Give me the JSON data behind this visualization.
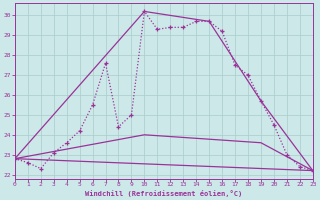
{
  "xlabel": "Windchill (Refroidissement éolien,°C)",
  "background_color": "#cde8e8",
  "grid_color": "#aacccc",
  "line_color": "#993399",
  "xlim": [
    0,
    23
  ],
  "ylim": [
    21.8,
    30.6
  ],
  "yticks": [
    22,
    23,
    24,
    25,
    26,
    27,
    28,
    29,
    30
  ],
  "xticks": [
    0,
    1,
    2,
    3,
    4,
    5,
    6,
    7,
    8,
    9,
    10,
    11,
    12,
    13,
    14,
    15,
    16,
    17,
    18,
    19,
    20,
    21,
    22,
    23
  ],
  "dotted_x": [
    0,
    1,
    2,
    3,
    4,
    5,
    6,
    7,
    8,
    9,
    10,
    11,
    12,
    13,
    14,
    15,
    16,
    17,
    18,
    19,
    20,
    21,
    22,
    23
  ],
  "dotted_y": [
    22.8,
    22.6,
    22.3,
    23.1,
    23.6,
    24.2,
    25.5,
    27.6,
    24.4,
    25.0,
    30.2,
    29.3,
    29.4,
    29.4,
    29.7,
    29.7,
    29.2,
    27.5,
    27.0,
    25.7,
    24.5,
    23.0,
    22.4,
    22.2
  ],
  "solid_lines": [
    {
      "x": [
        0,
        10,
        15,
        19,
        23
      ],
      "y": [
        22.8,
        30.2,
        29.7,
        25.7,
        22.2
      ]
    },
    {
      "x": [
        0,
        23
      ],
      "y": [
        22.8,
        22.2
      ]
    },
    {
      "x": [
        0,
        10,
        19,
        23
      ],
      "y": [
        22.8,
        24.0,
        23.6,
        22.2
      ]
    }
  ]
}
